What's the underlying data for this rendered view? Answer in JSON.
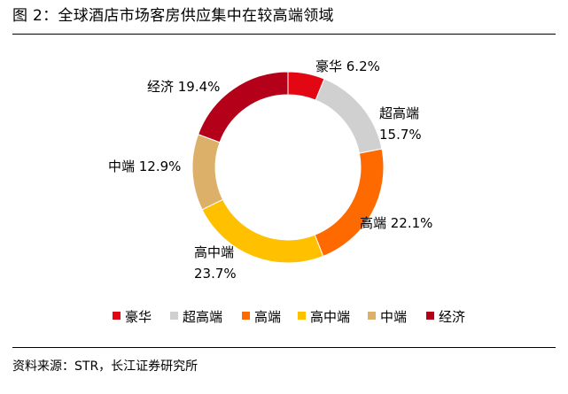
{
  "figure": {
    "title": "图 2：全球酒店市场客房供应集中在较高端领域",
    "source": "资料来源：STR，长江证券研究所"
  },
  "chart_data": {
    "type": "pie",
    "donut": true,
    "categories": [
      "豪华",
      "超高端",
      "高端",
      "高中端",
      "中端",
      "经济"
    ],
    "values": [
      6.2,
      15.7,
      22.1,
      23.7,
      12.9,
      19.4
    ],
    "unit": "%",
    "colors": [
      "#e30613",
      "#d0d0d0",
      "#ff6a00",
      "#ffc000",
      "#ddb06a",
      "#b5001a"
    ],
    "labels": [
      {
        "lines": [
          "豪华 6.2%"
        ]
      },
      {
        "lines": [
          "超高端",
          "15.7%"
        ]
      },
      {
        "lines": [
          "高端 22.1%"
        ]
      },
      {
        "lines": [
          "高中端",
          "23.7%"
        ]
      },
      {
        "lines": [
          "中端 12.9%"
        ]
      },
      {
        "lines": [
          "经济 19.4%"
        ]
      }
    ],
    "start_angle": "12 o'clock",
    "direction": "clockwise",
    "legend_position": "bottom"
  }
}
